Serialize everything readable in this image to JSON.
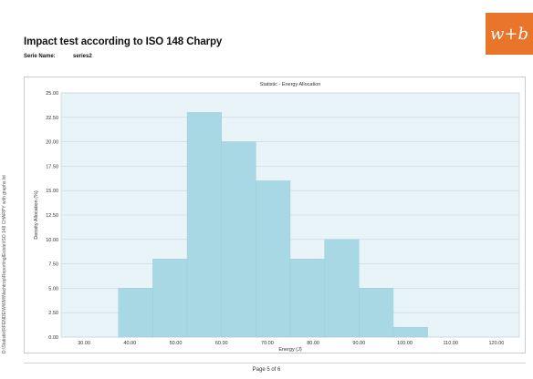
{
  "header": {
    "title": "Impact test according to ISO 148 Charpy",
    "serie_label": "Serie Name:",
    "serie_value": "series2",
    "logo_text": "w+b"
  },
  "side_label": "D:\\Statistik\\RFENDE\\WWM\\Nachtrop\\ReportingIEsiste\\ISO 148 CHARPY with graphs.lst",
  "footer": {
    "page": "Page 5 of 6"
  },
  "colors": {
    "bar_fill": "#a8d8e3",
    "plot_bg": "#e8f4f8",
    "logo_bg": "#e8752a"
  },
  "chart_data": {
    "type": "bar",
    "title": "Statistic - Energy Allocation",
    "xlabel": "Energy (J)",
    "ylabel": "Density Allocation (%)",
    "xlim": [
      25,
      125
    ],
    "ylim": [
      0,
      25
    ],
    "x_ticks": [
      "30.00",
      "40.00",
      "50.00",
      "60.00",
      "70.00",
      "80.00",
      "90.00",
      "100.00",
      "110.00",
      "120.00"
    ],
    "y_ticks": [
      "0.00",
      "2.50",
      "5.00",
      "7.50",
      "10.00",
      "12.50",
      "15.00",
      "17.50",
      "20.00",
      "22.50",
      "25.00"
    ],
    "bins": [
      {
        "start": 37.5,
        "end": 45,
        "value": 5
      },
      {
        "start": 45,
        "end": 52.5,
        "value": 8
      },
      {
        "start": 52.5,
        "end": 60,
        "value": 23
      },
      {
        "start": 60,
        "end": 67.5,
        "value": 20
      },
      {
        "start": 67.5,
        "end": 75,
        "value": 16
      },
      {
        "start": 75,
        "end": 82.5,
        "value": 8
      },
      {
        "start": 82.5,
        "end": 90,
        "value": 10
      },
      {
        "start": 90,
        "end": 97.5,
        "value": 5
      },
      {
        "start": 97.5,
        "end": 105,
        "value": 1
      }
    ]
  }
}
